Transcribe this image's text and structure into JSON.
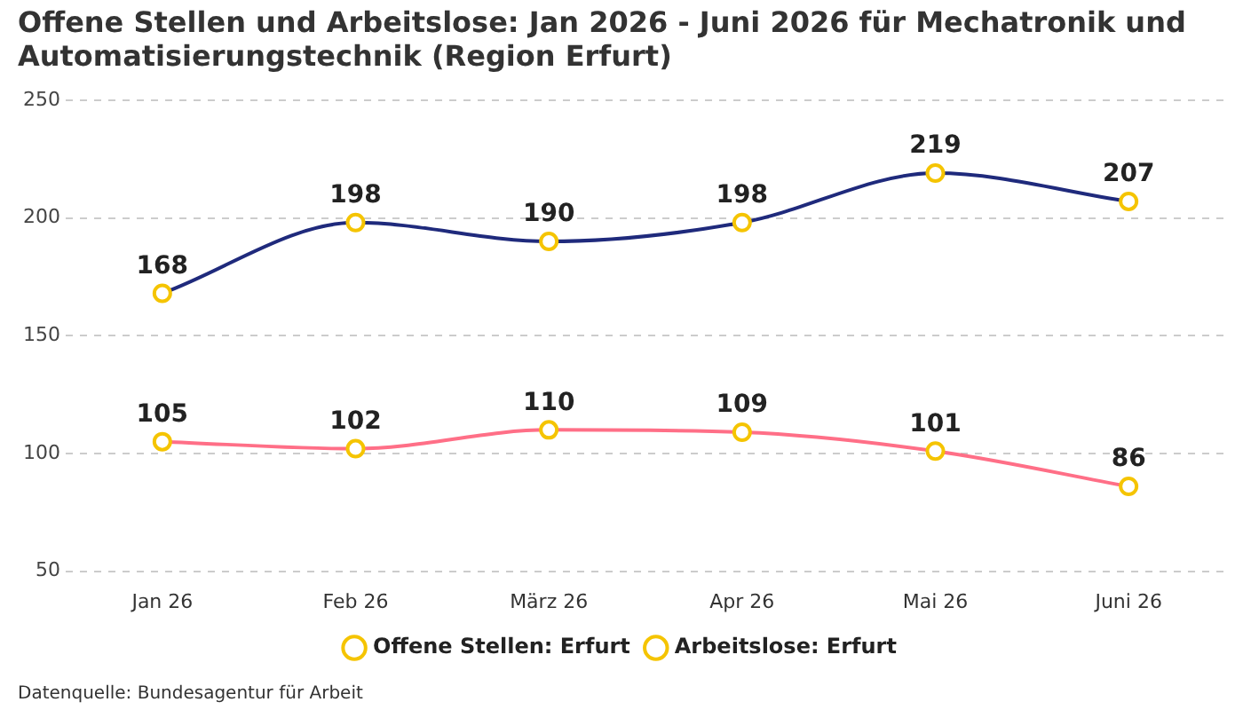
{
  "chart_data": {
    "type": "line",
    "title": "Offene Stellen und Arbeitslose: Jan 2026 - Juni 2026 für Mechatronik und Automatisierungstechnik (Region Erfurt)",
    "categories": [
      "Jan 26",
      "Feb 26",
      "März 26",
      "Apr 26",
      "Mai 26",
      "Juni 26"
    ],
    "series": [
      {
        "name": "Offene Stellen: Erfurt",
        "color": "#1f2a7c",
        "values": [
          168,
          198,
          190,
          198,
          219,
          207
        ]
      },
      {
        "name": "Arbeitslose: Erfurt",
        "color": "#ff6f87",
        "values": [
          105,
          102,
          110,
          109,
          101,
          86
        ]
      }
    ],
    "ylim": [
      50,
      250
    ],
    "yticks": [
      50,
      100,
      150,
      200,
      250
    ],
    "grid": "y",
    "legend": "bottom",
    "marker": "circle",
    "data_labels": true,
    "annotations": [
      "Datenquelle: Bundesagentur für Arbeit"
    ]
  }
}
